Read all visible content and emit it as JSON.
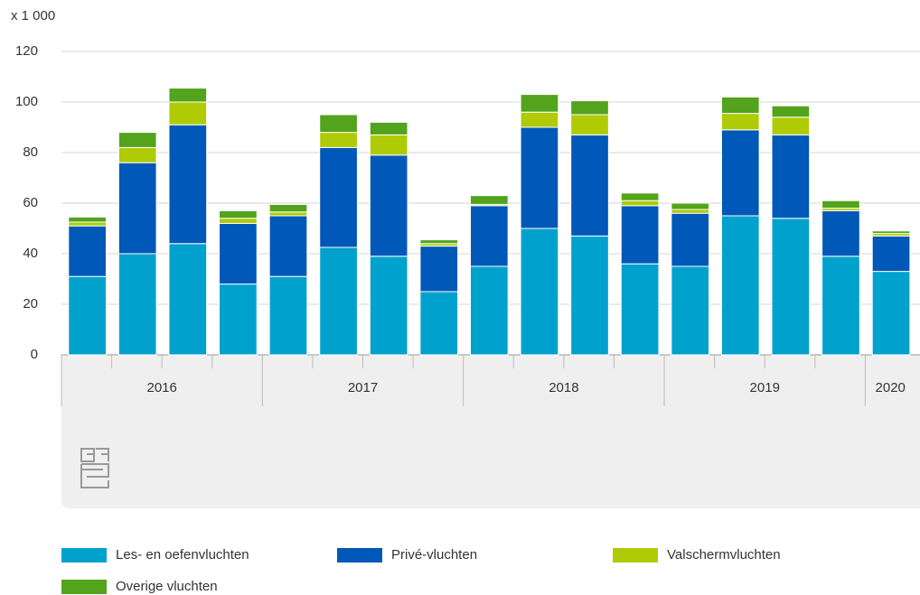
{
  "chart_data": {
    "type": "stacked-bar",
    "y_unit_label": "x 1 000",
    "categories": [
      null,
      null,
      null,
      null,
      null,
      null,
      null,
      null,
      null,
      null,
      null,
      null,
      null,
      null,
      null,
      null,
      null
    ],
    "x_groups": [
      "2016",
      "2017",
      "2018",
      "2019",
      "2020"
    ],
    "series": [
      {
        "name": "Les- en oefenvluchten",
        "color": "#00a1cd",
        "values": [
          31,
          40,
          44,
          28,
          31,
          42.5,
          39,
          25,
          35,
          50,
          47,
          36,
          35,
          55,
          54,
          39,
          33
        ]
      },
      {
        "name": "Privé-vluchten",
        "color": "#0058b8",
        "values": [
          20,
          36,
          47,
          24,
          24,
          39.5,
          40,
          18,
          24,
          40,
          40,
          23,
          21,
          34,
          33,
          18,
          14
        ]
      },
      {
        "name": "Valschermvluchten",
        "color": "#afcb05",
        "values": [
          1.5,
          6,
          9,
          2,
          1.5,
          6,
          8,
          1,
          0.5,
          6,
          8,
          2,
          1.5,
          6.5,
          7,
          1,
          1
        ]
      },
      {
        "name": "Overige vluchten",
        "color": "#53a31d",
        "values": [
          2,
          6,
          5.5,
          3,
          3,
          7,
          5,
          1.5,
          3.5,
          7,
          5.5,
          3,
          2.5,
          6.5,
          4.5,
          3,
          1
        ]
      }
    ],
    "ylim": [
      0,
      120
    ],
    "yticks": [
      0,
      20,
      40,
      60,
      80,
      100,
      120
    ],
    "grid": true
  }
}
